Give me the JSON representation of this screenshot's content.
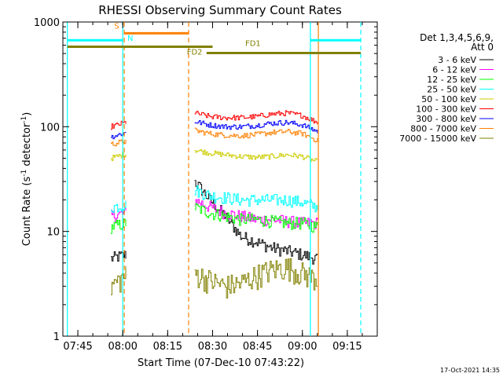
{
  "chart_data": {
    "type": "line",
    "title": "RHESSI Observing Summary Count Rates",
    "xlabel": "Start Time (07-Dec-10 07:43:22)",
    "ylabel": "Count Rate (s⁻¹ detector⁻¹)",
    "ylabel_main": "Count Rate (s",
    "ylabel_sup1": "-1",
    "ylabel_mid": " detector",
    "ylabel_sup2": "-1",
    "ylabel_end": ")",
    "yscale": "log",
    "ylim": [
      1,
      1000
    ],
    "xlim": [
      "07:40",
      "09:25"
    ],
    "x_ticks": [
      "07:45",
      "08:00",
      "08:15",
      "08:30",
      "08:45",
      "09:00",
      "09:15"
    ],
    "y_ticks": [
      "1",
      "10",
      "100",
      "1000"
    ],
    "footer_date": "17-Oct-2021 14:35",
    "legend_header": [
      "Det 1,3,4,5,6,9,",
      "Att 0"
    ],
    "grid": false,
    "segments": [
      {
        "start": "07:56",
        "end": "08:01"
      },
      {
        "start": "08:24",
        "end": "09:05"
      }
    ],
    "series": [
      {
        "name": "3 - 6 keV",
        "color": "#000000",
        "seg1": [
          5.5,
          6.0
        ],
        "seg2": [
          30,
          20,
          14,
          9,
          8,
          7,
          6.5,
          6,
          5.5
        ]
      },
      {
        "name": "6 - 12 keV",
        "color": "#ff00ff",
        "seg1": [
          14,
          15
        ],
        "seg2": [
          20,
          17,
          15,
          14,
          13,
          13,
          12.5,
          12,
          12
        ]
      },
      {
        "name": "12 - 25 keV",
        "color": "#00ff00",
        "seg1": [
          11,
          12
        ],
        "seg2": [
          17,
          15,
          14,
          13,
          13,
          12.5,
          12,
          12,
          11
        ]
      },
      {
        "name": "25 - 50 keV",
        "color": "#00ffff",
        "seg1": [
          17,
          18
        ],
        "seg2": [
          25,
          22,
          21,
          20,
          20,
          20,
          20,
          19,
          17
        ]
      },
      {
        "name": "50 - 100 keV",
        "color": "#cccc00",
        "seg1": [
          50,
          55
        ],
        "seg2": [
          60,
          56,
          54,
          52,
          51,
          52,
          54,
          52,
          46
        ]
      },
      {
        "name": "100 - 300 keV",
        "color": "#ff0000",
        "seg1": [
          100,
          110
        ],
        "seg2": [
          135,
          125,
          122,
          122,
          125,
          132,
          135,
          128,
          110
        ]
      },
      {
        "name": "300 - 800 keV",
        "color": "#0000ff",
        "seg1": [
          80,
          88
        ],
        "seg2": [
          112,
          104,
          100,
          100,
          103,
          108,
          110,
          104,
          90
        ]
      },
      {
        "name": "800 - 7000 keV",
        "color": "#ff8000",
        "seg1": [
          68,
          73
        ],
        "seg2": [
          92,
          86,
          83,
          82,
          84,
          88,
          90,
          86,
          74
        ]
      },
      {
        "name": "7000 - 15000 keV",
        "color": "#808000",
        "seg1": [
          3.0,
          3.8
        ],
        "seg2": [
          4.0,
          3.4,
          3.0,
          3.2,
          3.8,
          4.3,
          4.6,
          4.0,
          3.5
        ]
      }
    ],
    "vertical_markers": [
      {
        "time": "07:41:30",
        "color": "#00ffff",
        "style": "solid"
      },
      {
        "time": "08:00:00",
        "color": "#00ffff",
        "style": "solid"
      },
      {
        "time": "08:00:30",
        "color": "#ff8000",
        "style": "dashed"
      },
      {
        "time": "08:22:00",
        "color": "#ff8000",
        "style": "dashed"
      },
      {
        "time": "09:02:40",
        "color": "#00ffff",
        "style": "solid"
      },
      {
        "time": "09:05:20",
        "color": "#ff8000",
        "style": "solid"
      },
      {
        "time": "09:19:30",
        "color": "#00ffff",
        "style": "dashed"
      }
    ],
    "flag_bars": [
      {
        "label": "S",
        "color": "#ff8000",
        "start": "08:00:20",
        "end": "08:22:00",
        "value": 780,
        "label_time": "07:58:00",
        "label_value": 860
      },
      {
        "label": "N",
        "color": "#00ffff",
        "start": "07:41:30",
        "end": "08:00:00",
        "value": 670,
        "label_time": "08:02:30",
        "label_value": 660,
        "extra_start": "09:02:40",
        "extra_end": "09:19:30"
      },
      {
        "label": "FD1",
        "color": "#808000",
        "start": "07:41:30",
        "end": "08:30:00",
        "value": 580,
        "label_time": "08:43:30",
        "label_value": 590
      },
      {
        "label": "FD2",
        "color": "#808000",
        "start": "08:28:00",
        "end": "09:19:30",
        "value": 505,
        "label_time": "08:24:00",
        "label_value": 490
      }
    ]
  }
}
